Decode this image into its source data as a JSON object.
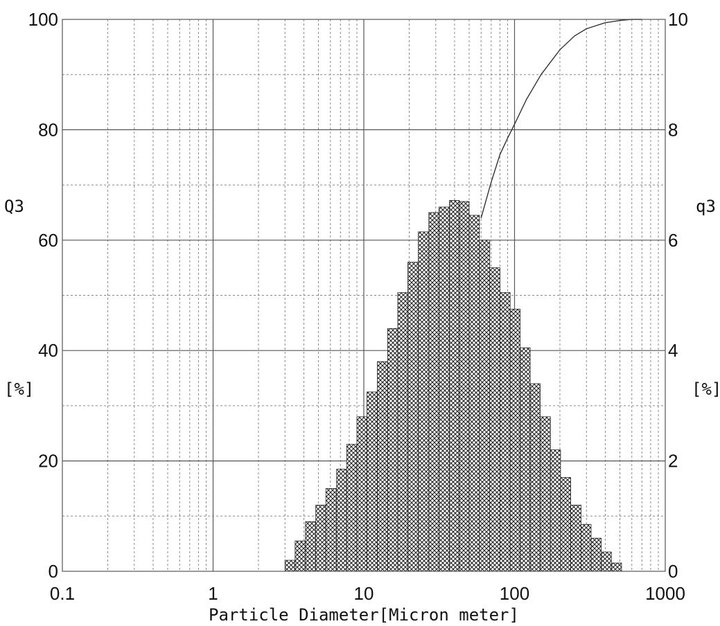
{
  "chart_data": {
    "type": "bar",
    "xlabel": "Particle Diameter[Micron meter]",
    "xscale": "log",
    "xlim": [
      0.1,
      1000
    ],
    "x_ticks": [
      "0.1",
      "1",
      "10",
      "100",
      "1000"
    ],
    "left_axis": {
      "label": "Q3",
      "unit": "[%]",
      "ylim": [
        0,
        100
      ],
      "ticks": [
        "0",
        "20",
        "40",
        "60",
        "80",
        "100"
      ]
    },
    "right_axis": {
      "label": "q3",
      "unit": "[%]",
      "ylim": [
        0,
        10
      ],
      "ticks": [
        "0",
        "2",
        "4",
        "6",
        "8",
        "10"
      ]
    },
    "grid": true,
    "series": [
      {
        "kind": "histogram",
        "axis": "right",
        "bins": [
          {
            "x0": 3.0,
            "x1": 3.5,
            "y": 0.2
          },
          {
            "x0": 3.5,
            "x1": 4.1,
            "y": 0.55
          },
          {
            "x0": 4.1,
            "x1": 4.8,
            "y": 0.9
          },
          {
            "x0": 4.8,
            "x1": 5.6,
            "y": 1.2
          },
          {
            "x0": 5.6,
            "x1": 6.6,
            "y": 1.5
          },
          {
            "x0": 6.6,
            "x1": 7.7,
            "y": 1.85
          },
          {
            "x0": 7.7,
            "x1": 9.0,
            "y": 2.3
          },
          {
            "x0": 9.0,
            "x1": 10.5,
            "y": 2.8
          },
          {
            "x0": 10.5,
            "x1": 12.3,
            "y": 3.25
          },
          {
            "x0": 12.3,
            "x1": 14.4,
            "y": 3.8
          },
          {
            "x0": 14.4,
            "x1": 16.8,
            "y": 4.4
          },
          {
            "x0": 16.8,
            "x1": 19.6,
            "y": 5.05
          },
          {
            "x0": 19.6,
            "x1": 23.0,
            "y": 5.6
          },
          {
            "x0": 23.0,
            "x1": 27.0,
            "y": 6.15
          },
          {
            "x0": 27.0,
            "x1": 31.5,
            "y": 6.5
          },
          {
            "x0": 31.5,
            "x1": 37.0,
            "y": 6.6
          },
          {
            "x0": 37.0,
            "x1": 43.0,
            "y": 6.72
          },
          {
            "x0": 43.0,
            "x1": 50.0,
            "y": 6.7
          },
          {
            "x0": 50.0,
            "x1": 58.5,
            "y": 6.45
          },
          {
            "x0": 58.5,
            "x1": 68.5,
            "y": 6.0
          },
          {
            "x0": 68.5,
            "x1": 80.0,
            "y": 5.5
          },
          {
            "x0": 80.0,
            "x1": 93.5,
            "y": 5.05
          },
          {
            "x0": 93.5,
            "x1": 109.0,
            "y": 4.75
          },
          {
            "x0": 109.0,
            "x1": 127.0,
            "y": 4.05
          },
          {
            "x0": 127.0,
            "x1": 148.0,
            "y": 3.4
          },
          {
            "x0": 148.0,
            "x1": 173.0,
            "y": 2.8
          },
          {
            "x0": 173.0,
            "x1": 202.0,
            "y": 2.2
          },
          {
            "x0": 202.0,
            "x1": 236.0,
            "y": 1.7
          },
          {
            "x0": 236.0,
            "x1": 276.0,
            "y": 1.2
          },
          {
            "x0": 276.0,
            "x1": 322.0,
            "y": 0.85
          },
          {
            "x0": 322.0,
            "x1": 376.0,
            "y": 0.6
          },
          {
            "x0": 376.0,
            "x1": 439.0,
            "y": 0.35
          },
          {
            "x0": 439.0,
            "x1": 513.0,
            "y": 0.15
          }
        ]
      },
      {
        "kind": "line",
        "axis": "left",
        "x": [
          60,
          70,
          80,
          90,
          100,
          120,
          150,
          200,
          250,
          300,
          400,
          500,
          600,
          700
        ],
        "y": [
          64,
          70.5,
          75.5,
          78.5,
          81,
          85.5,
          90,
          94.5,
          97,
          98.3,
          99.4,
          99.8,
          100,
          100
        ]
      }
    ]
  }
}
